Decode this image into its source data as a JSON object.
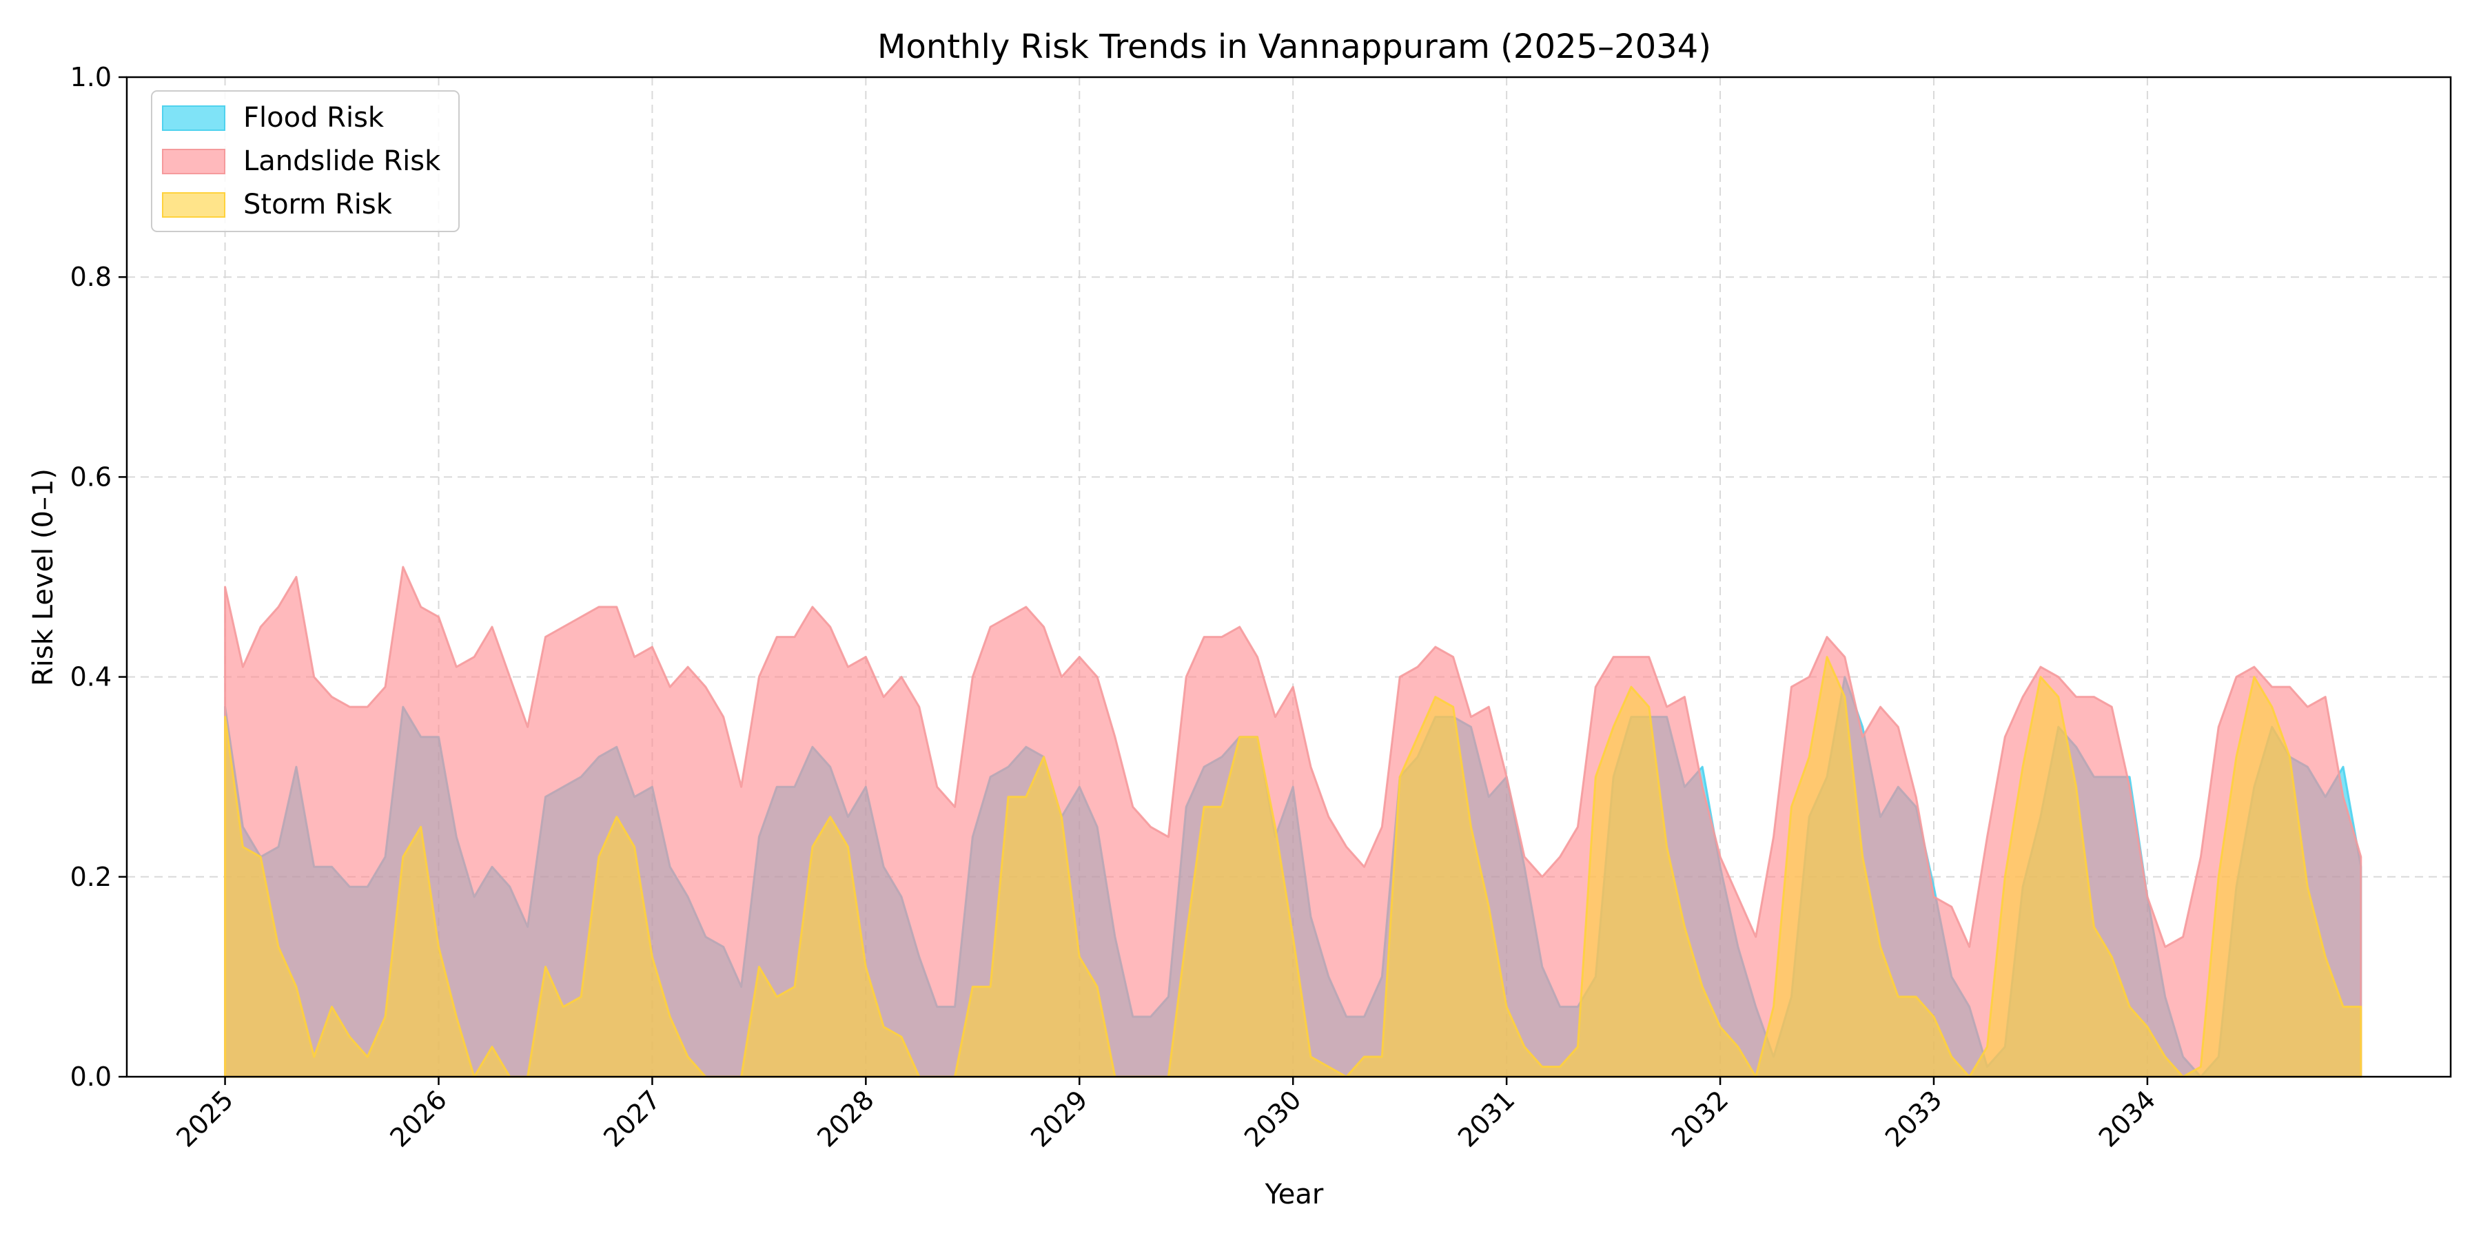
{
  "chart_data": {
    "type": "area",
    "title": "Monthly Risk Trends in Vannappuram (2025–2034)",
    "xlabel": "Year",
    "ylabel": "Risk Level (0–1)",
    "xlim": [
      2024.54,
      2035.42
    ],
    "ylim": [
      0,
      1
    ],
    "xticks": [
      "2025",
      "2026",
      "2027",
      "2028",
      "2029",
      "2030",
      "2031",
      "2032",
      "2033",
      "2034"
    ],
    "yticks": [
      "0.0",
      "0.2",
      "0.4",
      "0.6",
      "0.8",
      "1.0"
    ],
    "grid": true,
    "legend_position": "top-left",
    "start_year": 2025,
    "series": [
      {
        "name": "Flood Risk",
        "color": "#00c8f0",
        "edge_color": "#4fd2ee",
        "values": [
          0.37,
          0.25,
          0.22,
          0.23,
          0.31,
          0.21,
          0.21,
          0.19,
          0.19,
          0.22,
          0.37,
          0.34,
          0.34,
          0.24,
          0.18,
          0.21,
          0.19,
          0.15,
          0.28,
          0.29,
          0.3,
          0.32,
          0.33,
          0.28,
          0.29,
          0.21,
          0.18,
          0.14,
          0.13,
          0.09,
          0.24,
          0.29,
          0.29,
          0.33,
          0.31,
          0.26,
          0.29,
          0.21,
          0.18,
          0.12,
          0.07,
          0.07,
          0.24,
          0.3,
          0.31,
          0.33,
          0.32,
          0.26,
          0.29,
          0.25,
          0.14,
          0.06,
          0.06,
          0.08,
          0.27,
          0.31,
          0.32,
          0.34,
          0.34,
          0.24,
          0.29,
          0.16,
          0.1,
          0.06,
          0.06,
          0.1,
          0.3,
          0.32,
          0.36,
          0.36,
          0.35,
          0.28,
          0.3,
          0.21,
          0.11,
          0.07,
          0.07,
          0.1,
          0.3,
          0.36,
          0.36,
          0.36,
          0.29,
          0.31,
          0.21,
          0.13,
          0.07,
          0.02,
          0.08,
          0.26,
          0.3,
          0.4,
          0.35,
          0.26,
          0.29,
          0.27,
          0.19,
          0.1,
          0.07,
          0.01,
          0.03,
          0.19,
          0.26,
          0.35,
          0.33,
          0.3,
          0.3,
          0.3,
          0.18,
          0.08,
          0.02,
          0.0,
          0.02,
          0.19,
          0.29,
          0.35,
          0.32,
          0.31,
          0.28,
          0.31,
          0.21
        ]
      },
      {
        "name": "Landslide Risk",
        "color": "#ff8a8f",
        "edge_color": "#f59a9c",
        "values": [
          0.49,
          0.41,
          0.45,
          0.47,
          0.5,
          0.4,
          0.38,
          0.37,
          0.37,
          0.39,
          0.51,
          0.47,
          0.46,
          0.41,
          0.42,
          0.45,
          0.4,
          0.35,
          0.44,
          0.45,
          0.46,
          0.47,
          0.47,
          0.42,
          0.43,
          0.39,
          0.41,
          0.39,
          0.36,
          0.29,
          0.4,
          0.44,
          0.44,
          0.47,
          0.45,
          0.41,
          0.42,
          0.38,
          0.4,
          0.37,
          0.29,
          0.27,
          0.4,
          0.45,
          0.46,
          0.47,
          0.45,
          0.4,
          0.42,
          0.4,
          0.34,
          0.27,
          0.25,
          0.24,
          0.4,
          0.44,
          0.44,
          0.45,
          0.42,
          0.36,
          0.39,
          0.31,
          0.26,
          0.23,
          0.21,
          0.25,
          0.4,
          0.41,
          0.43,
          0.42,
          0.36,
          0.37,
          0.3,
          0.22,
          0.2,
          0.22,
          0.25,
          0.39,
          0.42,
          0.42,
          0.42,
          0.37,
          0.38,
          0.29,
          0.22,
          0.18,
          0.14,
          0.24,
          0.39,
          0.4,
          0.44,
          0.42,
          0.34,
          0.37,
          0.35,
          0.28,
          0.18,
          0.17,
          0.13,
          0.24,
          0.34,
          0.38,
          0.41,
          0.4,
          0.38,
          0.38,
          0.37,
          0.29,
          0.18,
          0.13,
          0.14,
          0.22,
          0.35,
          0.4,
          0.41,
          0.39,
          0.39,
          0.37,
          0.38,
          0.28,
          0.22
        ]
      },
      {
        "name": "Storm Risk",
        "color": "#ffd23c",
        "edge_color": "#ffd23c",
        "values": [
          0.36,
          0.23,
          0.22,
          0.13,
          0.09,
          0.02,
          0.07,
          0.04,
          0.02,
          0.06,
          0.22,
          0.25,
          0.13,
          0.06,
          0.0,
          0.03,
          0.0,
          0.0,
          0.11,
          0.07,
          0.08,
          0.22,
          0.26,
          0.23,
          0.12,
          0.06,
          0.02,
          0.0,
          0.0,
          0.0,
          0.11,
          0.08,
          0.09,
          0.23,
          0.26,
          0.23,
          0.11,
          0.05,
          0.04,
          0.0,
          0.0,
          0.0,
          0.09,
          0.09,
          0.28,
          0.28,
          0.32,
          0.26,
          0.12,
          0.09,
          0.0,
          0.0,
          0.0,
          0.0,
          0.14,
          0.27,
          0.27,
          0.34,
          0.34,
          0.25,
          0.14,
          0.02,
          0.01,
          0.0,
          0.02,
          0.02,
          0.3,
          0.34,
          0.38,
          0.37,
          0.25,
          0.17,
          0.07,
          0.03,
          0.01,
          0.01,
          0.03,
          0.3,
          0.35,
          0.39,
          0.37,
          0.23,
          0.15,
          0.09,
          0.05,
          0.03,
          0.0,
          0.07,
          0.27,
          0.32,
          0.42,
          0.38,
          0.22,
          0.13,
          0.08,
          0.08,
          0.06,
          0.02,
          0.0,
          0.03,
          0.2,
          0.31,
          0.4,
          0.38,
          0.29,
          0.15,
          0.12,
          0.07,
          0.05,
          0.02,
          0.0,
          0.01,
          0.2,
          0.32,
          0.4,
          0.37,
          0.32,
          0.19,
          0.12,
          0.07,
          0.07
        ]
      }
    ]
  }
}
